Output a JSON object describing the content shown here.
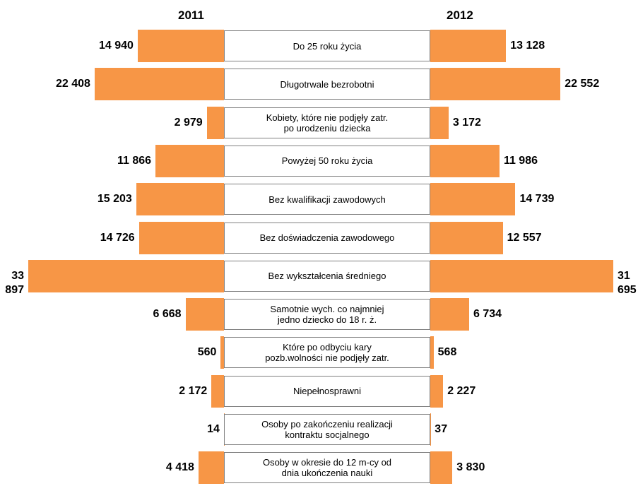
{
  "chart_data": {
    "type": "butterfly",
    "categories": [
      "Do 25 roku życia",
      "Długotrwale bezrobotni",
      "Kobiety, które nie podjęły zatr.\npo urodzeniu dziecka",
      "Powyżej 50 roku życia",
      "Bez kwalifikacji zawodowych",
      "Bez doświadczenia zawodowego",
      "Bez wykształcenia średniego",
      "Samotnie wych. co najmniej\njedno dziecko do 18 r. ż.",
      "Które po odbyciu kary\npozb.wolności nie podjęły zatr.",
      "Niepełnosprawni",
      "Osoby po zakończeniu realizacji\nkontraktu socjalnego",
      "Osoby w okresie do 12 m-cy od\ndnia ukończenia nauki"
    ],
    "series": [
      {
        "name": "2011",
        "color": "#f79646",
        "side": "left",
        "values": [
          14940,
          22408,
          2979,
          11866,
          15203,
          14726,
          33897,
          6668,
          560,
          2172,
          14,
          4418
        ],
        "value_labels": [
          "14 940",
          "22 408",
          "2 979",
          "11 866",
          "15 203",
          "14 726",
          "33 897",
          "6 668",
          "560",
          "2 172",
          "14",
          "4 418"
        ]
      },
      {
        "name": "2012",
        "color": "#f79646",
        "side": "right",
        "values": [
          13128,
          22552,
          3172,
          11986,
          14739,
          12557,
          31695,
          6734,
          568,
          2227,
          37,
          3830
        ],
        "value_labels": [
          "13 128",
          "22 552",
          "3 172",
          "11 986",
          "14 739",
          "12 557",
          "31 695",
          "6 734",
          "568",
          "2 227",
          "37",
          "3 830"
        ]
      }
    ]
  }
}
